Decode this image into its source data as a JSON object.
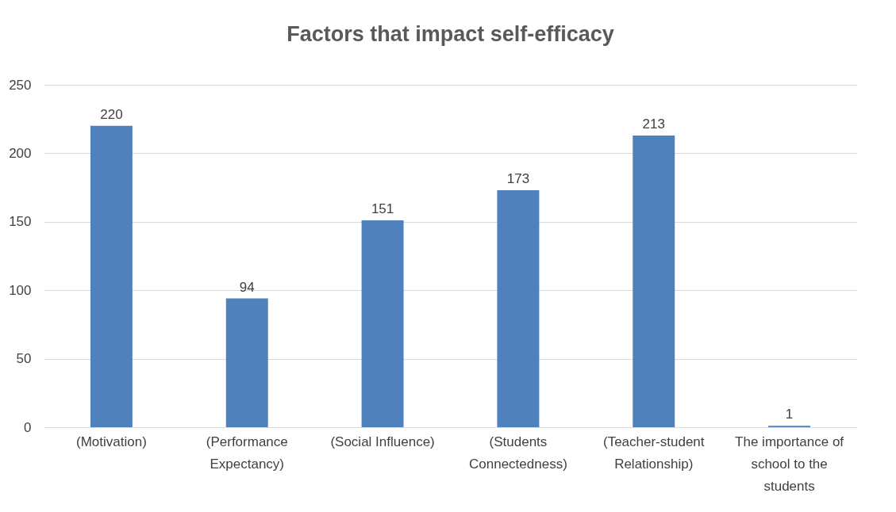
{
  "chart_data": {
    "type": "bar",
    "title": "Factors that impact self-efficacy",
    "categories": [
      "(Motivation)",
      "(Performance Expectancy)",
      "(Social Influence)",
      "(Students Connectedness)",
      "(Teacher-student Relationship)",
      "The importance of school to the students"
    ],
    "values": [
      220,
      94,
      151,
      173,
      213,
      1
    ],
    "color": "#4f81bd",
    "ylim": [
      0,
      250
    ],
    "yticks": [
      0,
      50,
      100,
      150,
      200,
      250
    ],
    "grid": "y",
    "data_labels": true
  }
}
